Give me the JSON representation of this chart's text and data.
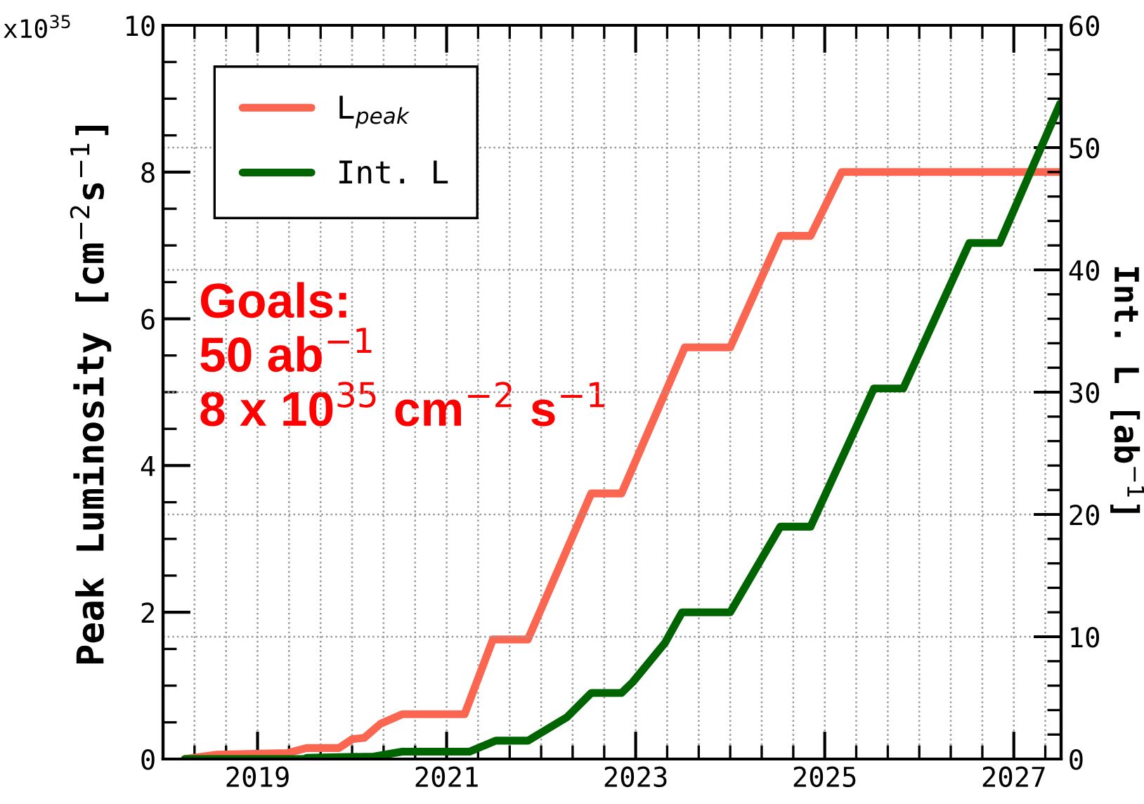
{
  "chart_data": {
    "type": "line",
    "xlim": [
      2018,
      2027.5
    ],
    "xticks": [
      {
        "value": 2018.333,
        "label": null
      },
      {
        "value": 2018.667,
        "label": null
      },
      2019,
      {
        "value": 2019.333,
        "label": null
      },
      {
        "value": 2019.667,
        "label": null
      },
      {
        "value": 2020,
        "label": null
      },
      {
        "value": 2020.333,
        "label": null
      },
      {
        "value": 2020.667,
        "label": null
      },
      2021,
      {
        "value": 2021.333,
        "label": null
      },
      {
        "value": 2021.667,
        "label": null
      },
      {
        "value": 2022,
        "label": null
      },
      {
        "value": 2022.333,
        "label": null
      },
      {
        "value": 2022.667,
        "label": null
      },
      2023,
      {
        "value": 2023.333,
        "label": null
      },
      {
        "value": 2023.667,
        "label": null
      },
      {
        "value": 2024,
        "label": null
      },
      {
        "value": 2024.333,
        "label": null
      },
      {
        "value": 2024.667,
        "label": null
      },
      2025,
      {
        "value": 2025.333,
        "label": null
      },
      {
        "value": 2025.667,
        "label": null
      },
      {
        "value": 2026,
        "label": null
      },
      {
        "value": 2026.333,
        "label": null
      },
      {
        "value": 2026.667,
        "label": null
      },
      2027,
      {
        "value": 2027.333,
        "label": null
      }
    ],
    "ylim": [
      0,
      10
    ],
    "yticks": [
      0,
      {
        "value": 0.5,
        "label": null
      },
      {
        "value": 1,
        "label": null
      },
      {
        "value": 1.5,
        "label": null
      },
      2,
      {
        "value": 2.5,
        "label": null
      },
      {
        "value": 3,
        "label": null
      },
      {
        "value": 3.5,
        "label": null
      },
      4,
      {
        "value": 4.5,
        "label": null
      },
      {
        "value": 5,
        "label": null
      },
      {
        "value": 5.5,
        "label": null
      },
      6,
      {
        "value": 6.5,
        "label": null
      },
      {
        "value": 7,
        "label": null
      },
      {
        "value": 7.5,
        "label": null
      },
      8,
      {
        "value": 8.5,
        "label": null
      },
      {
        "value": 9,
        "label": null
      },
      {
        "value": 9.5,
        "label": null
      },
      10
    ],
    "y2lim": [
      0,
      60
    ],
    "y2ticks": [
      0,
      {
        "value": 2,
        "label": null
      },
      {
        "value": 4,
        "label": null
      },
      {
        "value": 6,
        "label": null
      },
      {
        "value": 8,
        "label": null
      },
      10,
      {
        "value": 12,
        "label": null
      },
      {
        "value": 14,
        "label": null
      },
      {
        "value": 16,
        "label": null
      },
      {
        "value": 18,
        "label": null
      },
      20,
      {
        "value": 22,
        "label": null
      },
      {
        "value": 24,
        "label": null
      },
      {
        "value": 26,
        "label": null
      },
      {
        "value": 28,
        "label": null
      },
      30,
      {
        "value": 32,
        "label": null
      },
      {
        "value": 34,
        "label": null
      },
      {
        "value": 36,
        "label": null
      },
      {
        "value": 38,
        "label": null
      },
      40,
      {
        "value": 42,
        "label": null
      },
      {
        "value": 44,
        "label": null
      },
      {
        "value": 46,
        "label": null
      },
      {
        "value": 48,
        "label": null
      },
      50,
      {
        "value": 52,
        "label": null
      },
      {
        "value": 54,
        "label": null
      },
      {
        "value": 56,
        "label": null
      },
      {
        "value": 58,
        "label": null
      },
      60
    ],
    "ylabel": "Peak Luminosity [cm$^{−2}$s$^{−1}$]",
    "y2label": "Int. L [ab$^{−1}$]",
    "annotations": [
      "x10$^{35}$",
      "Goals:\n50 ab$^{−1}$\n8 x 10$^{35}$ cm$^{−2}$ s$^{−1}$"
    ],
    "grid": true,
    "legend": "top left",
    "marker": "none",
    "line_style": "solid",
    "series": [
      {
        "name": "L$_{peak}$",
        "color": "#fa6650",
        "x": [
          2018.23,
          2018.57,
          2019.31,
          2019.52,
          2019.86,
          2020.0,
          2020.13,
          2020.3,
          2020.53,
          2021.19,
          2021.49,
          2021.86,
          2022.53,
          2022.85,
          2023.52,
          2024.0,
          2024.53,
          2024.85,
          2025.18,
          2027.5
        ],
        "values": [
          0,
          0.06,
          0.08,
          0.15,
          0.15,
          0.27,
          0.29,
          0.48,
          0.61,
          0.61,
          1.63,
          1.63,
          3.62,
          3.62,
          5.61,
          5.61,
          7.13,
          7.13,
          8.0,
          8.0
        ]
      },
      {
        "name": "Int. L",
        "color": "#006400",
        "axis": "y2",
        "x": [
          2018.23,
          2019.49,
          2019.52,
          2020.23,
          2020.53,
          2021.24,
          2021.52,
          2021.86,
          2022.27,
          2022.53,
          2022.85,
          2022.97,
          2023.31,
          2023.49,
          2024.0,
          2024.53,
          2024.85,
          2025.52,
          2025.83,
          2026.53,
          2026.85,
          2027.49
        ],
        "values": [
          0,
          0,
          0.1,
          0.2,
          0.6,
          0.6,
          1.5,
          1.5,
          3.4,
          5.4,
          5.4,
          6.3,
          9.5,
          12.0,
          12.0,
          19.0,
          19.0,
          30.3,
          30.3,
          42.2,
          42.2,
          53.6
        ]
      }
    ]
  }
}
